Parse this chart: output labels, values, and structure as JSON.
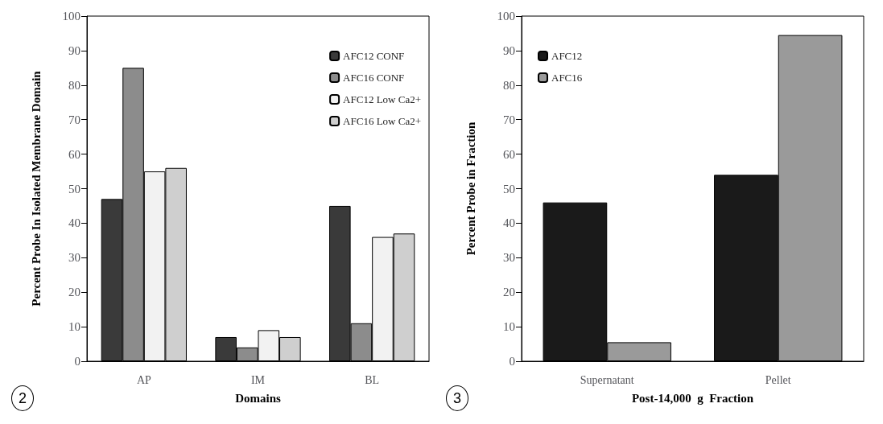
{
  "chart_data": [
    {
      "type": "bar",
      "xlabel": "Domains",
      "ylabel": "Percent Probe In Isolated Membrane Domain",
      "categories": [
        "AP",
        "IM",
        "BL"
      ],
      "series": [
        {
          "name": "AFC12 CONF",
          "color": "#3a3a3a",
          "values": [
            47,
            7,
            45
          ]
        },
        {
          "name": "AFC16 CONF",
          "color": "#8c8c8c",
          "values": [
            85,
            4,
            11
          ]
        },
        {
          "name": "AFC12 Low Ca2+",
          "color": "#f2f2f2",
          "values": [
            55,
            9,
            36
          ]
        },
        {
          "name": "AFC16 Low Ca2+",
          "color": "#cfcfcf",
          "values": [
            56,
            7,
            37
          ]
        }
      ],
      "ylim": [
        0,
        100
      ],
      "yticks": [
        0,
        10,
        20,
        30,
        40,
        50,
        60,
        70,
        80,
        90,
        100
      ],
      "grid": false,
      "legend": "top right",
      "annotations": [
        "2"
      ]
    },
    {
      "type": "bar",
      "xlabel": "Post-14,000  g  Fraction",
      "ylabel": "Percent Probe in Fraction",
      "categories": [
        "Supernatant",
        "Pellet"
      ],
      "series": [
        {
          "name": "AFC12",
          "color": "#1a1a1a",
          "values": [
            46,
            54
          ]
        },
        {
          "name": "AFC16",
          "color": "#9a9a9a",
          "values": [
            5.5,
            94.5
          ]
        }
      ],
      "ylim": [
        0,
        100
      ],
      "yticks": [
        0,
        10,
        20,
        30,
        40,
        50,
        60,
        70,
        80,
        90,
        100
      ],
      "grid": false,
      "legend": "top left",
      "annotations": [
        "3"
      ]
    }
  ]
}
